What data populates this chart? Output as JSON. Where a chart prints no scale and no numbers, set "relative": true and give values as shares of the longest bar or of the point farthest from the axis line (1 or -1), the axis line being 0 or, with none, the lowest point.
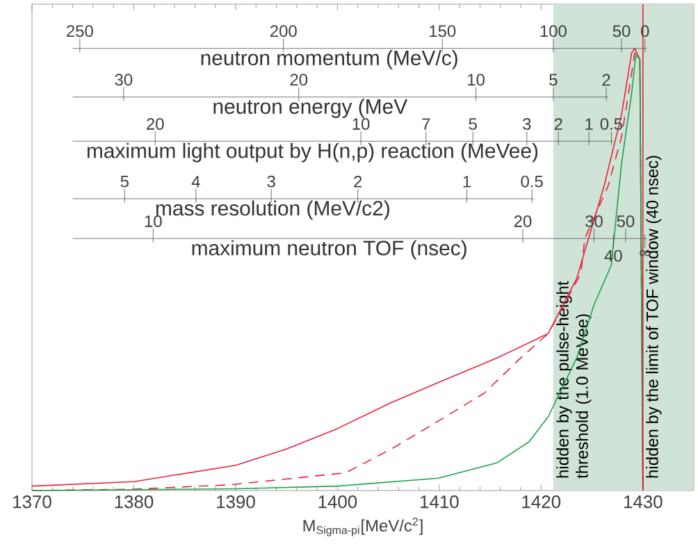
{
  "chart_data": {
    "type": "line",
    "relative": true,
    "xlabel": "M$_{Sigma-pi}$[MeV/c$^{2}$]",
    "xlim": [
      1370,
      1435
    ],
    "xticks": [
      1370,
      1380,
      1390,
      1400,
      1410,
      1420,
      1430
    ],
    "series": [
      {
        "color": "#e8213a",
        "line_style": "solid",
        "x": [
          1370,
          1380,
          1390,
          1395,
          1400,
          1405.2,
          1410,
          1415.7,
          1420.7,
          1423.5,
          1426.2,
          1427.9,
          1428.9,
          1429.2,
          1429.7,
          1430
        ],
        "values": [
          0.01,
          0.02,
          0.057,
          0.094,
          0.14,
          0.198,
          0.245,
          0.3,
          0.355,
          0.48,
          0.69,
          0.85,
          0.99,
          1.0,
          0.975,
          0
        ]
      },
      {
        "color": "#e8213a",
        "line_style": "dashed",
        "x": [
          1370,
          1380,
          1389.5,
          1400.8,
          1405.3,
          1409.9,
          1414.4,
          1418,
          1420.7,
          1423.9,
          1424.3,
          1426.6,
          1427.9,
          1428.8,
          1429.2,
          1429.7,
          1430
        ],
        "values": [
          0,
          0.003,
          0.013,
          0.04,
          0.094,
          0.157,
          0.22,
          0.3,
          0.355,
          0.49,
          0.57,
          0.69,
          0.8,
          0.93,
          0.99,
          0.975,
          0
        ]
      },
      {
        "color": "#1aa34a",
        "line_style": "solid",
        "x": [
          1370,
          1390,
          1400,
          1409.9,
          1415.7,
          1418.8,
          1420.7,
          1423.5,
          1425.2,
          1426.9,
          1427.9,
          1428.9,
          1429.3,
          1429.7,
          1430
        ],
        "values": [
          0,
          0.004,
          0.01,
          0.028,
          0.063,
          0.11,
          0.167,
          0.3,
          0.42,
          0.51,
          0.74,
          0.9,
          0.985,
          0.975,
          0
        ]
      }
    ],
    "bands": [
      {
        "axis": "x",
        "from": 1421.2,
        "to": 1435,
        "color": "#cfe3d6",
        "label": "hidden by the pulse-height threshold (1.0 MeVee)"
      }
    ],
    "ref_lines": [
      {
        "axis": "x",
        "value": 1430,
        "color": "#e8213a",
        "label": "hidden by  the limit of TOF window (40 nsec)"
      },
      {
        "axis": "y",
        "value": 1.0,
        "color": "#555555",
        "label": "neutron momentum (MeV/c)"
      },
      {
        "axis": "y",
        "value": 0.89,
        "color": "#555555",
        "label": "neutron energy (MeV"
      },
      {
        "axis": "y",
        "value": 0.79,
        "color": "#555555",
        "label": "maximum light output by H(n,p) reaction (MeVee)"
      },
      {
        "axis": "y",
        "value": 0.66,
        "color": "#555555",
        "label": "mass resolution (MeV/c2)"
      },
      {
        "axis": "y",
        "value": 0.57,
        "color": "#555555",
        "label": "maximum neutron TOF (nsec)"
      }
    ],
    "annotations": [
      {
        "text": "250",
        "x": 1374.7,
        "y": 1.0
      },
      {
        "text": "200",
        "x": 1394.7,
        "y": 1.0
      },
      {
        "text": "150",
        "x": 1410.3,
        "y": 1.0
      },
      {
        "text": "100",
        "x": 1421.2,
        "y": 1.0
      },
      {
        "text": "50",
        "x": 1427.9,
        "y": 1.0
      },
      {
        "text": "0",
        "x": 1430.2,
        "y": 1.0
      },
      {
        "text": "30",
        "x": 1379.0,
        "y": 0.89
      },
      {
        "text": "20",
        "x": 1396.2,
        "y": 0.89
      },
      {
        "text": "10",
        "x": 1413.6,
        "y": 0.89
      },
      {
        "text": "5",
        "x": 1421.2,
        "y": 0.89
      },
      {
        "text": "2",
        "x": 1426.4,
        "y": 0.89
      },
      {
        "text": "20",
        "x": 1382.1,
        "y": 0.79
      },
      {
        "text": "10",
        "x": 1402.3,
        "y": 0.79
      },
      {
        "text": "7",
        "x": 1408.7,
        "y": 0.79
      },
      {
        "text": "5",
        "x": 1413.3,
        "y": 0.79
      },
      {
        "text": "3",
        "x": 1418.6,
        "y": 0.79
      },
      {
        "text": "2",
        "x": 1421.7,
        "y": 0.79
      },
      {
        "text": "1",
        "x": 1424.7,
        "y": 0.79
      },
      {
        "text": "0.5",
        "x": 1426.9,
        "y": 0.79
      },
      {
        "text": "5",
        "x": 1379.1,
        "y": 0.66
      },
      {
        "text": "4",
        "x": 1386.1,
        "y": 0.66
      },
      {
        "text": "3",
        "x": 1393.5,
        "y": 0.66
      },
      {
        "text": "2",
        "x": 1402.0,
        "y": 0.66
      },
      {
        "text": "1",
        "x": 1412.7,
        "y": 0.66
      },
      {
        "text": "0.5",
        "x": 1419.1,
        "y": 0.66
      },
      {
        "text": "10",
        "x": 1381.9,
        "y": 0.57
      },
      {
        "text": "20",
        "x": 1418.2,
        "y": 0.57
      },
      {
        "text": "30",
        "x": 1425.2,
        "y": 0.57
      },
      {
        "text": "40",
        "x": 1427.1,
        "y": 0.57
      },
      {
        "text": "50",
        "x": 1428.3,
        "y": 0.57
      },
      {
        "text": "∞",
        "x": 1430.2,
        "y": 0.57
      }
    ]
  }
}
